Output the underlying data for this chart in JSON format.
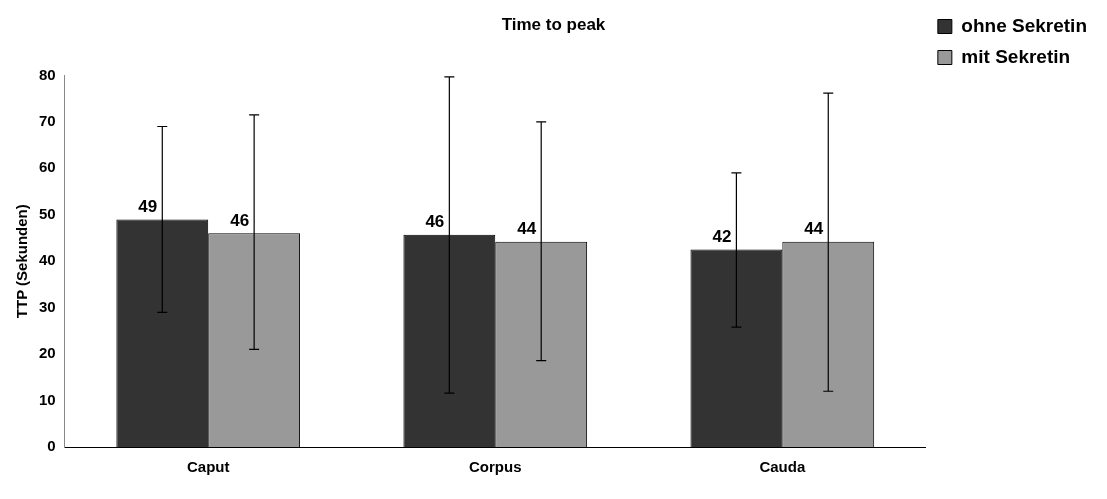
{
  "chart_data": {
    "type": "bar",
    "title": "Time to peak",
    "ylabel": "TTP (Sekunden)",
    "categories": [
      "Caput",
      "Corpus",
      "Cauda"
    ],
    "series": [
      {
        "name": "ohne Sekretin",
        "color": "#333333",
        "values": [
          49,
          45.7,
          42.5
        ],
        "errors": [
          [
            29,
            69
          ],
          [
            11.6,
            79.7
          ],
          [
            25.8,
            59
          ]
        ],
        "value_labels": [
          "49",
          "46",
          "42"
        ]
      },
      {
        "name": "mit Sekretin",
        "color": "#999999",
        "values": [
          46,
          44.2,
          44.2
        ],
        "errors": [
          [
            21,
            71.5
          ],
          [
            18.6,
            70
          ],
          [
            12,
            76.2
          ]
        ],
        "value_labels": [
          "46",
          "44",
          "44"
        ]
      }
    ],
    "ylim": [
      0,
      80
    ],
    "yticks": [
      0,
      10,
      20,
      30,
      40,
      50,
      60,
      70,
      80
    ],
    "grid": false,
    "legend": "right"
  }
}
